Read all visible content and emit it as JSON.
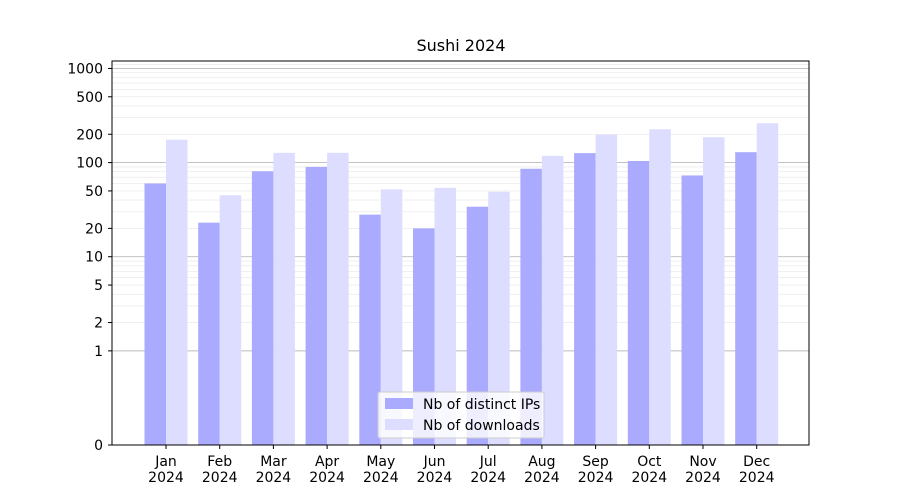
{
  "chart_data": {
    "type": "bar",
    "title": "Sushi 2024",
    "xlabel": "",
    "ylabel": "",
    "y_scale": "symlog",
    "ylim": [
      0,
      1200
    ],
    "y_ticks": [
      {
        "value": 0,
        "label": "0"
      },
      {
        "value": 1,
        "label": "1"
      },
      {
        "value": 2,
        "label": "2"
      },
      {
        "value": 5,
        "label": "5"
      },
      {
        "value": 10,
        "label": "10"
      },
      {
        "value": 20,
        "label": "20"
      },
      {
        "value": 50,
        "label": "50"
      },
      {
        "value": 100,
        "label": "100"
      },
      {
        "value": 200,
        "label": "200"
      },
      {
        "value": 500,
        "label": "500"
      },
      {
        "value": 1000,
        "label": "1000"
      }
    ],
    "categories": [
      {
        "month": "Jan",
        "year": "2024"
      },
      {
        "month": "Feb",
        "year": "2024"
      },
      {
        "month": "Mar",
        "year": "2024"
      },
      {
        "month": "Apr",
        "year": "2024"
      },
      {
        "month": "May",
        "year": "2024"
      },
      {
        "month": "Jun",
        "year": "2024"
      },
      {
        "month": "Jul",
        "year": "2024"
      },
      {
        "month": "Aug",
        "year": "2024"
      },
      {
        "month": "Sep",
        "year": "2024"
      },
      {
        "month": "Oct",
        "year": "2024"
      },
      {
        "month": "Nov",
        "year": "2024"
      },
      {
        "month": "Dec",
        "year": "2024"
      }
    ],
    "series": [
      {
        "name": "Nb of distinct IPs",
        "color": "#aaaaff",
        "values": [
          60,
          23,
          81,
          90,
          28,
          20,
          34,
          86,
          126,
          104,
          73,
          129
        ]
      },
      {
        "name": "Nb of downloads",
        "color": "#ddddff",
        "values": [
          175,
          45,
          127,
          127,
          52,
          54,
          49,
          118,
          198,
          226,
          186,
          262
        ]
      }
    ],
    "grid": "horizontal",
    "legend_position": "bottom-center"
  }
}
